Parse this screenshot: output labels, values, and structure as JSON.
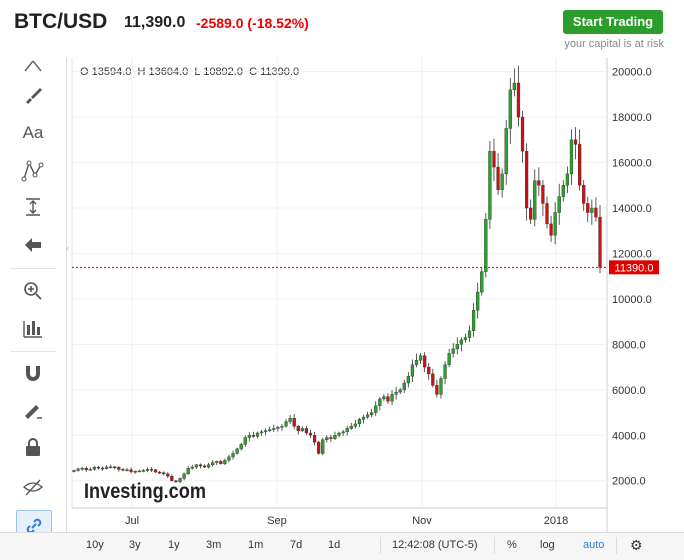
{
  "header": {
    "symbol": "BTC/USD",
    "price": "11,390.0",
    "change": "-2589.0 (-18.52%)",
    "cta_label": "Start Trading",
    "risk_note": "your capital is at risk"
  },
  "ohlc": {
    "o_label": "O",
    "o": "13594.0",
    "h_label": "H",
    "h": "13604.0",
    "l_label": "L",
    "l": "10892.0",
    "c_label": "C",
    "c": "11390.0"
  },
  "toolbar": {
    "items": [
      {
        "name": "crosshair-icon"
      },
      {
        "name": "brush-icon"
      },
      {
        "name": "text-tool-icon",
        "label": "Aa"
      },
      {
        "name": "pattern-icon"
      },
      {
        "name": "measure-icon"
      },
      {
        "name": "arrow-left-icon"
      },
      {
        "name": "zoom-in-icon"
      },
      {
        "name": "bars-icon"
      },
      {
        "name": "magnet-icon"
      },
      {
        "name": "draw-lock-icon"
      },
      {
        "name": "lock-icon"
      },
      {
        "name": "hide-icon"
      },
      {
        "name": "link-icon"
      }
    ]
  },
  "bottom": {
    "ranges": [
      "10y",
      "3y",
      "1y",
      "3m",
      "1m",
      "7d",
      "1d"
    ],
    "time": "12:42:08 (UTC-5)",
    "percent": "%",
    "log": "log",
    "auto": "auto"
  },
  "watermark": "Investing.com",
  "colors": {
    "up": "#2ca02c",
    "down": "#cc1111",
    "accent": "#2a9d2a",
    "last_price": "#e00000"
  },
  "chart_data": {
    "type": "candlestick",
    "xlabel": "",
    "ylabel": "",
    "x_ticks": [
      "Jul",
      "Sep",
      "Nov",
      "2018"
    ],
    "y_ticks": [
      "2000.0",
      "4000.0",
      "6000.0",
      "8000.0",
      "10000.0",
      "12000.0",
      "14000.0",
      "16000.0",
      "18000.0",
      "20000.0"
    ],
    "ylim": [
      800,
      20600
    ],
    "last_price": 11390,
    "last_price_label": "11390.0",
    "closes": [
      2450,
      2520,
      2550,
      2480,
      2500,
      2600,
      2560,
      2530,
      2600,
      2610,
      2590,
      2500,
      2460,
      2480,
      2400,
      2420,
      2430,
      2450,
      2500,
      2480,
      2380,
      2350,
      2300,
      2200,
      2000,
      1950,
      2100,
      2300,
      2550,
      2600,
      2700,
      2650,
      2600,
      2700,
      2800,
      2850,
      2750,
      2900,
      3050,
      3200,
      3400,
      3600,
      3900,
      4000,
      3950,
      4100,
      4150,
      4200,
      4250,
      4300,
      4350,
      4400,
      4600,
      4750,
      4400,
      4200,
      4300,
      4100,
      4000,
      3700,
      3200,
      3800,
      3900,
      3850,
      4000,
      4100,
      4150,
      4300,
      4400,
      4500,
      4700,
      4800,
      4900,
      5000,
      5300,
      5600,
      5700,
      5500,
      5800,
      5900,
      6000,
      6300,
      6600,
      7100,
      7300,
      7500,
      7000,
      6700,
      6200,
      5800,
      6500,
      7100,
      7600,
      7800,
      8000,
      8200,
      8300,
      8600,
      9500,
      10300,
      11200,
      13500,
      16500,
      15800,
      14800,
      15500,
      17500,
      19200,
      19500,
      18000,
      16500,
      14000,
      13500,
      15200,
      15000,
      14200,
      13300,
      12800,
      13800,
      14500,
      15000,
      15500,
      17000,
      16800,
      15000,
      14200,
      13800,
      14000,
      13600,
      11390
    ]
  }
}
